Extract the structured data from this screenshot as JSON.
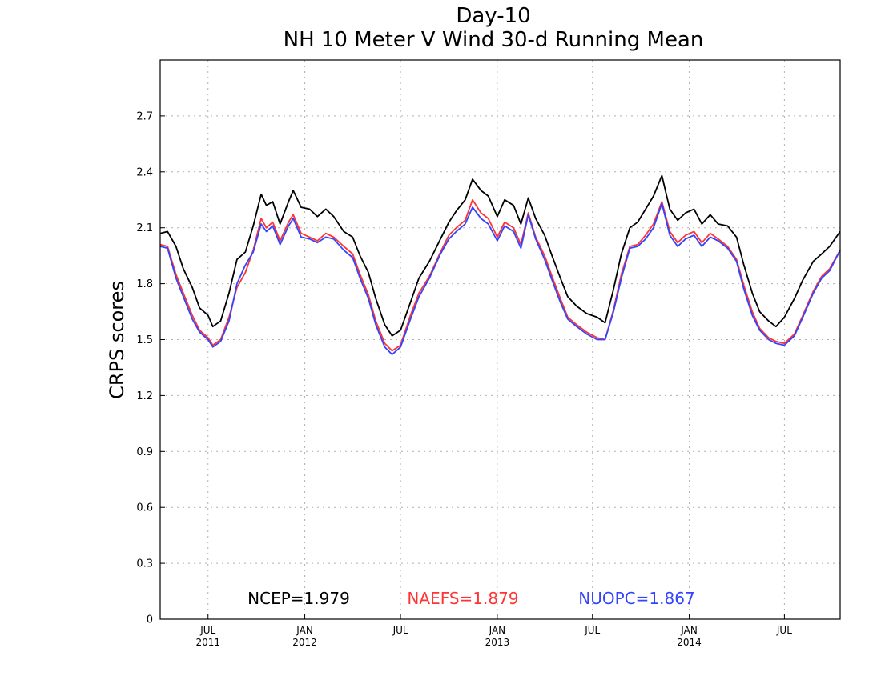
{
  "chart_data": {
    "type": "line",
    "title": "Day-10",
    "subtitle": "NH 10 Meter V Wind 30-d Running Mean",
    "ylabel": "CRPS scores",
    "xlabel": "",
    "ylim": [
      0,
      3.0
    ],
    "xlim": [
      "2011-04-01",
      "2014-10-15"
    ],
    "yticks": [
      0,
      0.3,
      0.6,
      0.9,
      1.2,
      1.5,
      1.8,
      2.1,
      2.4,
      2.7
    ],
    "ytick_labels": [
      "0",
      "0.3",
      "0.6",
      "0.9",
      "1.2",
      "1.5",
      "1.8",
      "2.1",
      "2.4",
      "2.7"
    ],
    "xticks": [
      {
        "date": "2011-07-01",
        "month": "JUL",
        "year": "2011"
      },
      {
        "date": "2012-01-01",
        "month": "JAN",
        "year": "2012"
      },
      {
        "date": "2012-07-01",
        "month": "JUL",
        "year": ""
      },
      {
        "date": "2013-01-01",
        "month": "JAN",
        "year": "2013"
      },
      {
        "date": "2013-07-01",
        "month": "JUL",
        "year": ""
      },
      {
        "date": "2014-01-01",
        "month": "JAN",
        "year": "2014"
      },
      {
        "date": "2014-07-01",
        "month": "JUL",
        "year": ""
      }
    ],
    "grid": true,
    "legend_position": "bottom",
    "series": [
      {
        "name": "NCEP",
        "color": "#000000",
        "legend": "NCEP=1.979",
        "points": [
          [
            "2011-04-01",
            2.07
          ],
          [
            "2011-04-15",
            2.08
          ],
          [
            "2011-05-01",
            2.0
          ],
          [
            "2011-05-15",
            1.88
          ],
          [
            "2011-06-01",
            1.78
          ],
          [
            "2011-06-15",
            1.67
          ],
          [
            "2011-07-01",
            1.63
          ],
          [
            "2011-07-10",
            1.57
          ],
          [
            "2011-07-25",
            1.6
          ],
          [
            "2011-08-10",
            1.75
          ],
          [
            "2011-08-25",
            1.93
          ],
          [
            "2011-09-10",
            1.97
          ],
          [
            "2011-09-25",
            2.11
          ],
          [
            "2011-10-10",
            2.28
          ],
          [
            "2011-10-20",
            2.22
          ],
          [
            "2011-11-01",
            2.24
          ],
          [
            "2011-11-15",
            2.12
          ],
          [
            "2011-12-01",
            2.24
          ],
          [
            "2011-12-10",
            2.3
          ],
          [
            "2011-12-25",
            2.21
          ],
          [
            "2012-01-10",
            2.2
          ],
          [
            "2012-01-25",
            2.16
          ],
          [
            "2012-02-10",
            2.2
          ],
          [
            "2012-02-25",
            2.16
          ],
          [
            "2012-03-15",
            2.08
          ],
          [
            "2012-04-01",
            2.05
          ],
          [
            "2012-04-15",
            1.95
          ],
          [
            "2012-05-01",
            1.86
          ],
          [
            "2012-05-15",
            1.72
          ],
          [
            "2012-06-01",
            1.58
          ],
          [
            "2012-06-15",
            1.52
          ],
          [
            "2012-07-01",
            1.55
          ],
          [
            "2012-07-20",
            1.7
          ],
          [
            "2012-08-05",
            1.83
          ],
          [
            "2012-08-25",
            1.92
          ],
          [
            "2012-09-15",
            2.04
          ],
          [
            "2012-10-01",
            2.13
          ],
          [
            "2012-10-15",
            2.19
          ],
          [
            "2012-11-01",
            2.25
          ],
          [
            "2012-11-15",
            2.36
          ],
          [
            "2012-12-01",
            2.3
          ],
          [
            "2012-12-15",
            2.27
          ],
          [
            "2013-01-01",
            2.16
          ],
          [
            "2013-01-15",
            2.25
          ],
          [
            "2013-02-01",
            2.22
          ],
          [
            "2013-02-15",
            2.12
          ],
          [
            "2013-03-01",
            2.26
          ],
          [
            "2013-03-15",
            2.15
          ],
          [
            "2013-04-01",
            2.06
          ],
          [
            "2013-04-15",
            1.95
          ],
          [
            "2013-05-01",
            1.83
          ],
          [
            "2013-05-15",
            1.73
          ],
          [
            "2013-06-01",
            1.68
          ],
          [
            "2013-06-20",
            1.64
          ],
          [
            "2013-07-10",
            1.62
          ],
          [
            "2013-07-25",
            1.59
          ],
          [
            "2013-08-10",
            1.77
          ],
          [
            "2013-08-25",
            1.96
          ],
          [
            "2013-09-10",
            2.1
          ],
          [
            "2013-09-25",
            2.13
          ],
          [
            "2013-10-10",
            2.2
          ],
          [
            "2013-10-25",
            2.27
          ],
          [
            "2013-11-10",
            2.38
          ],
          [
            "2013-11-25",
            2.2
          ],
          [
            "2013-12-10",
            2.14
          ],
          [
            "2013-12-25",
            2.18
          ],
          [
            "2014-01-10",
            2.2
          ],
          [
            "2014-01-25",
            2.12
          ],
          [
            "2014-02-10",
            2.17
          ],
          [
            "2014-02-25",
            2.12
          ],
          [
            "2014-03-15",
            2.11
          ],
          [
            "2014-04-01",
            2.05
          ],
          [
            "2014-04-15",
            1.9
          ],
          [
            "2014-05-01",
            1.75
          ],
          [
            "2014-05-15",
            1.65
          ],
          [
            "2014-06-01",
            1.6
          ],
          [
            "2014-06-15",
            1.57
          ],
          [
            "2014-07-01",
            1.62
          ],
          [
            "2014-07-20",
            1.72
          ],
          [
            "2014-08-05",
            1.82
          ],
          [
            "2014-08-25",
            1.92
          ],
          [
            "2014-09-10",
            1.96
          ],
          [
            "2014-09-25",
            2.0
          ],
          [
            "2014-10-15",
            2.08
          ]
        ]
      },
      {
        "name": "NAEFS",
        "color": "#ff3333",
        "legend": "NAEFS=1.879",
        "points": [
          [
            "2011-04-01",
            2.01
          ],
          [
            "2011-04-15",
            2.0
          ],
          [
            "2011-05-01",
            1.85
          ],
          [
            "2011-05-15",
            1.75
          ],
          [
            "2011-06-01",
            1.63
          ],
          [
            "2011-06-15",
            1.55
          ],
          [
            "2011-07-01",
            1.51
          ],
          [
            "2011-07-10",
            1.47
          ],
          [
            "2011-07-25",
            1.5
          ],
          [
            "2011-08-10",
            1.62
          ],
          [
            "2011-08-25",
            1.78
          ],
          [
            "2011-09-10",
            1.86
          ],
          [
            "2011-09-25",
            1.98
          ],
          [
            "2011-10-10",
            2.15
          ],
          [
            "2011-10-20",
            2.1
          ],
          [
            "2011-11-01",
            2.13
          ],
          [
            "2011-11-15",
            2.03
          ],
          [
            "2011-12-01",
            2.13
          ],
          [
            "2011-12-10",
            2.17
          ],
          [
            "2011-12-25",
            2.07
          ],
          [
            "2012-01-10",
            2.05
          ],
          [
            "2012-01-25",
            2.03
          ],
          [
            "2012-02-10",
            2.07
          ],
          [
            "2012-02-25",
            2.05
          ],
          [
            "2012-03-15",
            2.0
          ],
          [
            "2012-04-01",
            1.96
          ],
          [
            "2012-04-15",
            1.85
          ],
          [
            "2012-05-01",
            1.74
          ],
          [
            "2012-05-15",
            1.6
          ],
          [
            "2012-06-01",
            1.48
          ],
          [
            "2012-06-15",
            1.44
          ],
          [
            "2012-07-01",
            1.47
          ],
          [
            "2012-07-20",
            1.63
          ],
          [
            "2012-08-05",
            1.75
          ],
          [
            "2012-08-25",
            1.84
          ],
          [
            "2012-09-15",
            1.97
          ],
          [
            "2012-10-01",
            2.06
          ],
          [
            "2012-10-15",
            2.1
          ],
          [
            "2012-11-01",
            2.14
          ],
          [
            "2012-11-15",
            2.25
          ],
          [
            "2012-12-01",
            2.18
          ],
          [
            "2012-12-15",
            2.15
          ],
          [
            "2013-01-01",
            2.05
          ],
          [
            "2013-01-15",
            2.13
          ],
          [
            "2013-02-01",
            2.1
          ],
          [
            "2013-02-15",
            2.01
          ],
          [
            "2013-03-01",
            2.18
          ],
          [
            "2013-03-15",
            2.05
          ],
          [
            "2013-04-01",
            1.95
          ],
          [
            "2013-04-15",
            1.84
          ],
          [
            "2013-05-01",
            1.72
          ],
          [
            "2013-05-15",
            1.62
          ],
          [
            "2013-06-01",
            1.58
          ],
          [
            "2013-06-20",
            1.54
          ],
          [
            "2013-07-10",
            1.51
          ],
          [
            "2013-07-25",
            1.5
          ],
          [
            "2013-08-10",
            1.66
          ],
          [
            "2013-08-25",
            1.85
          ],
          [
            "2013-09-10",
            2.0
          ],
          [
            "2013-09-25",
            2.01
          ],
          [
            "2013-10-10",
            2.06
          ],
          [
            "2013-10-25",
            2.12
          ],
          [
            "2013-11-10",
            2.24
          ],
          [
            "2013-11-25",
            2.08
          ],
          [
            "2013-12-10",
            2.02
          ],
          [
            "2013-12-25",
            2.06
          ],
          [
            "2014-01-10",
            2.08
          ],
          [
            "2014-01-25",
            2.02
          ],
          [
            "2014-02-10",
            2.07
          ],
          [
            "2014-02-25",
            2.04
          ],
          [
            "2014-03-15",
            2.0
          ],
          [
            "2014-04-01",
            1.93
          ],
          [
            "2014-04-15",
            1.79
          ],
          [
            "2014-05-01",
            1.65
          ],
          [
            "2014-05-15",
            1.56
          ],
          [
            "2014-06-01",
            1.51
          ],
          [
            "2014-06-15",
            1.49
          ],
          [
            "2014-07-01",
            1.48
          ],
          [
            "2014-07-20",
            1.53
          ],
          [
            "2014-08-05",
            1.63
          ],
          [
            "2014-08-25",
            1.76
          ],
          [
            "2014-09-10",
            1.84
          ],
          [
            "2014-09-25",
            1.88
          ],
          [
            "2014-10-15",
            1.98
          ]
        ]
      },
      {
        "name": "NUOPC",
        "color": "#3344ff",
        "legend": "NUOPC=1.867",
        "points": [
          [
            "2011-04-01",
            2.0
          ],
          [
            "2011-04-15",
            1.99
          ],
          [
            "2011-05-01",
            1.83
          ],
          [
            "2011-05-15",
            1.73
          ],
          [
            "2011-06-01",
            1.61
          ],
          [
            "2011-06-15",
            1.54
          ],
          [
            "2011-07-01",
            1.5
          ],
          [
            "2011-07-10",
            1.46
          ],
          [
            "2011-07-25",
            1.49
          ],
          [
            "2011-08-10",
            1.6
          ],
          [
            "2011-08-25",
            1.8
          ],
          [
            "2011-09-10",
            1.9
          ],
          [
            "2011-09-25",
            1.97
          ],
          [
            "2011-10-10",
            2.12
          ],
          [
            "2011-10-20",
            2.08
          ],
          [
            "2011-11-01",
            2.11
          ],
          [
            "2011-11-15",
            2.01
          ],
          [
            "2011-12-01",
            2.11
          ],
          [
            "2011-12-10",
            2.15
          ],
          [
            "2011-12-25",
            2.05
          ],
          [
            "2012-01-10",
            2.04
          ],
          [
            "2012-01-25",
            2.02
          ],
          [
            "2012-02-10",
            2.05
          ],
          [
            "2012-02-25",
            2.04
          ],
          [
            "2012-03-15",
            1.98
          ],
          [
            "2012-04-01",
            1.94
          ],
          [
            "2012-04-15",
            1.83
          ],
          [
            "2012-05-01",
            1.72
          ],
          [
            "2012-05-15",
            1.58
          ],
          [
            "2012-06-01",
            1.46
          ],
          [
            "2012-06-15",
            1.42
          ],
          [
            "2012-07-01",
            1.46
          ],
          [
            "2012-07-20",
            1.61
          ],
          [
            "2012-08-05",
            1.73
          ],
          [
            "2012-08-25",
            1.83
          ],
          [
            "2012-09-15",
            1.96
          ],
          [
            "2012-10-01",
            2.04
          ],
          [
            "2012-10-15",
            2.08
          ],
          [
            "2012-11-01",
            2.12
          ],
          [
            "2012-11-15",
            2.21
          ],
          [
            "2012-12-01",
            2.15
          ],
          [
            "2012-12-15",
            2.12
          ],
          [
            "2013-01-01",
            2.03
          ],
          [
            "2013-01-15",
            2.11
          ],
          [
            "2013-02-01",
            2.08
          ],
          [
            "2013-02-15",
            1.99
          ],
          [
            "2013-03-01",
            2.17
          ],
          [
            "2013-03-15",
            2.04
          ],
          [
            "2013-04-01",
            1.93
          ],
          [
            "2013-04-15",
            1.82
          ],
          [
            "2013-05-01",
            1.7
          ],
          [
            "2013-05-15",
            1.61
          ],
          [
            "2013-06-01",
            1.57
          ],
          [
            "2013-06-20",
            1.53
          ],
          [
            "2013-07-10",
            1.5
          ],
          [
            "2013-07-25",
            1.5
          ],
          [
            "2013-08-10",
            1.65
          ],
          [
            "2013-08-25",
            1.83
          ],
          [
            "2013-09-10",
            1.99
          ],
          [
            "2013-09-25",
            2.0
          ],
          [
            "2013-10-10",
            2.04
          ],
          [
            "2013-10-25",
            2.1
          ],
          [
            "2013-11-10",
            2.23
          ],
          [
            "2013-11-25",
            2.06
          ],
          [
            "2013-12-10",
            2.0
          ],
          [
            "2013-12-25",
            2.04
          ],
          [
            "2014-01-10",
            2.06
          ],
          [
            "2014-01-25",
            2.0
          ],
          [
            "2014-02-10",
            2.05
          ],
          [
            "2014-02-25",
            2.03
          ],
          [
            "2014-03-15",
            1.99
          ],
          [
            "2014-04-01",
            1.92
          ],
          [
            "2014-04-15",
            1.77
          ],
          [
            "2014-05-01",
            1.63
          ],
          [
            "2014-05-15",
            1.55
          ],
          [
            "2014-06-01",
            1.5
          ],
          [
            "2014-06-15",
            1.48
          ],
          [
            "2014-07-01",
            1.47
          ],
          [
            "2014-07-20",
            1.52
          ],
          [
            "2014-08-05",
            1.62
          ],
          [
            "2014-08-25",
            1.75
          ],
          [
            "2014-09-10",
            1.83
          ],
          [
            "2014-09-25",
            1.87
          ],
          [
            "2014-10-15",
            1.98
          ]
        ]
      }
    ]
  }
}
